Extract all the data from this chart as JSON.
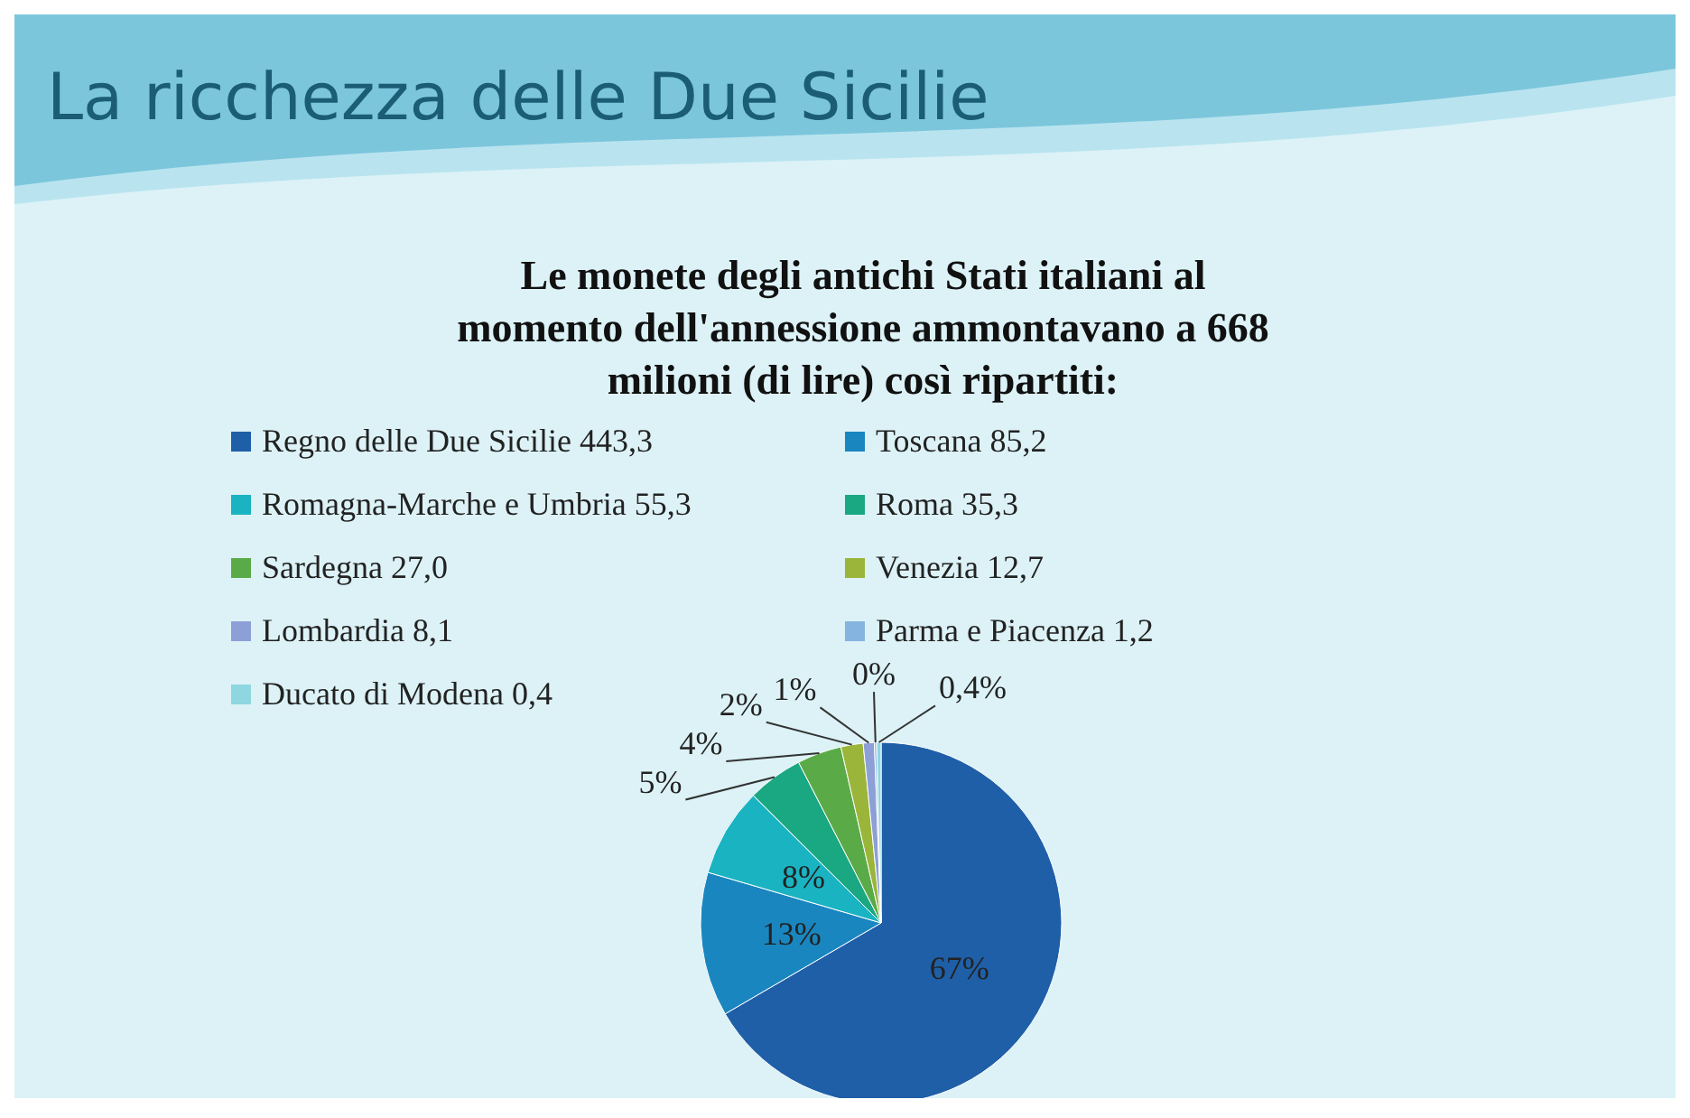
{
  "chart_data": {
    "type": "pie",
    "title": "La ricchezza delle Due Sicilie",
    "subtitle": "Le monete degli antichi Stati italiani al momento dell'annessione ammontavano a 668 milioni (di lire) così ripartiti:",
    "categories": [
      "Regno delle Due Sicilie 443,3",
      "Toscana 85,2",
      "Romagna-Marche e Umbria 55,3",
      "Roma 35,3",
      "Sardegna 27,0",
      "Venezia 12,7",
      "Lombardia 8,1",
      "Parma e Piacenza 1,2",
      "Ducato di Modena 0,4"
    ],
    "values": [
      67,
      13,
      8,
      5,
      4,
      2,
      1,
      0.2,
      0.4
    ],
    "colors": [
      "#1f5fa8",
      "#1a86c0",
      "#1ab3c2",
      "#1aa882",
      "#5aab48",
      "#9ab53a",
      "#8c9fd6",
      "#86b4e0",
      "#8ed6e0"
    ],
    "value_labels": [
      "67%",
      "13%",
      "8%",
      "5%",
      "4%",
      "2%",
      "1%",
      "0%",
      "0,4%"
    ],
    "legend": "top"
  }
}
